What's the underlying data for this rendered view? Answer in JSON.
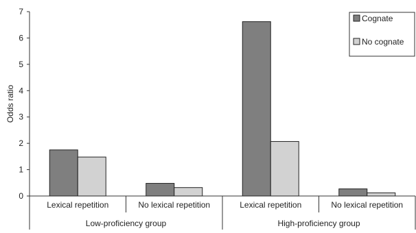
{
  "chart_data": {
    "type": "bar",
    "title": "",
    "ylabel": "Odds ratio",
    "xlabel": "",
    "ylim": [
      0,
      7
    ],
    "yticks": [
      0,
      1,
      2,
      3,
      4,
      5,
      6,
      7
    ],
    "grid": false,
    "legend_position": "top-right",
    "categories": [
      "Lexical repetition",
      "No lexical repetition",
      "Lexical repetition",
      "No lexical repetition"
    ],
    "groups": [
      {
        "label": "Low-proficiency group",
        "categories": [
          0,
          1
        ]
      },
      {
        "label": "High-proficiency group",
        "categories": [
          2,
          3
        ]
      }
    ],
    "series": [
      {
        "name": "Cognate",
        "color": "#7f7f7f",
        "values": [
          1.75,
          0.48,
          6.62,
          0.27
        ]
      },
      {
        "name": "No cognate",
        "color": "#d2d2d2",
        "values": [
          1.48,
          0.32,
          2.07,
          0.12
        ]
      }
    ]
  }
}
